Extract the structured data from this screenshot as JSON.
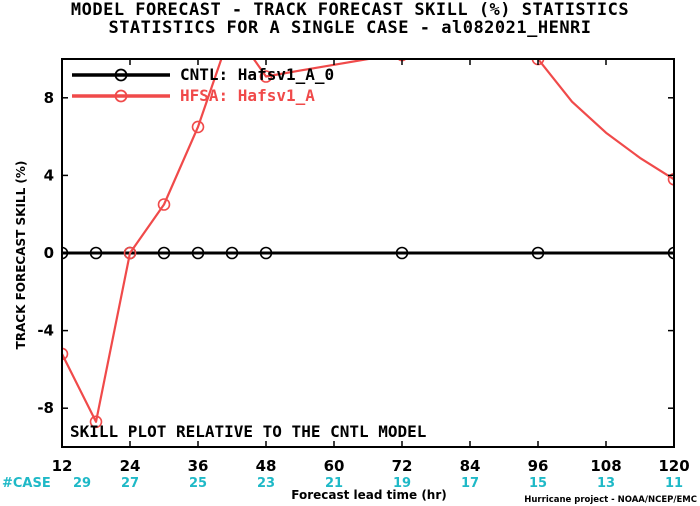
{
  "chart_data": {
    "type": "line",
    "title_line1": "MODEL FORECAST - TRACK FORECAST SKILL (%) STATISTICS",
    "title_line2": "STATISTICS FOR A SINGLE CASE - al082021_HENRI",
    "xlabel": "Forecast lead time (hr)",
    "ylabel": "TRACK FORECAST SKILL (%)",
    "xlim": [
      12,
      120
    ],
    "ylim": [
      -10,
      10
    ],
    "x_ticks": [
      "12",
      "24",
      "36",
      "48",
      "60",
      "72",
      "84",
      "96",
      "108",
      "120"
    ],
    "y_ticks": [
      "-8",
      "-4",
      "0",
      "4",
      "8"
    ],
    "series": [
      {
        "name": "CNTL: Hafsv1_A_0",
        "color": "#000000",
        "x": [
          12,
          18,
          24,
          30,
          36,
          42,
          48,
          54,
          60,
          66,
          72,
          78,
          84,
          90,
          96,
          102,
          108,
          114,
          120
        ],
        "y": [
          0,
          0,
          0,
          0,
          0,
          0,
          0,
          0,
          0,
          0,
          0,
          0,
          0,
          0,
          0,
          0,
          0,
          0,
          0
        ],
        "markers_at": [
          12,
          18,
          24,
          30,
          36,
          42,
          48,
          72,
          96,
          120
        ]
      },
      {
        "name": "HFSA: Hafsv1_A",
        "color": "#f04a4a",
        "x": [
          12,
          18,
          24,
          30,
          36,
          42,
          48,
          54,
          60,
          66,
          72,
          78,
          84,
          90,
          96,
          102,
          108,
          114,
          120
        ],
        "y": [
          -5.2,
          -8.7,
          0,
          2.5,
          6.5,
          11.6,
          9.1,
          9.4,
          9.7,
          10.0,
          10.2,
          10.8,
          11.3,
          10.6,
          10.0,
          7.8,
          6.2,
          4.9,
          3.8
        ],
        "markers_at": [
          12,
          18,
          24,
          30,
          36,
          42,
          48,
          72,
          96,
          120
        ]
      }
    ],
    "case_label": "#CASE",
    "case_counts": [
      {
        "x": 12,
        "n": "29"
      },
      {
        "x": 24,
        "n": "27"
      },
      {
        "x": 36,
        "n": "25"
      },
      {
        "x": 48,
        "n": "23"
      },
      {
        "x": 60,
        "n": "21"
      },
      {
        "x": 72,
        "n": "19"
      },
      {
        "x": 84,
        "n": "17"
      },
      {
        "x": 96,
        "n": "15"
      },
      {
        "x": 108,
        "n": "13"
      },
      {
        "x": 120,
        "n": "11"
      }
    ],
    "annotation": "SKILL PLOT RELATIVE TO THE CNTL MODEL",
    "credit": "Hurricane project - NOAA/NCEP/EMC",
    "legend_position": "top-left",
    "grid": false
  }
}
